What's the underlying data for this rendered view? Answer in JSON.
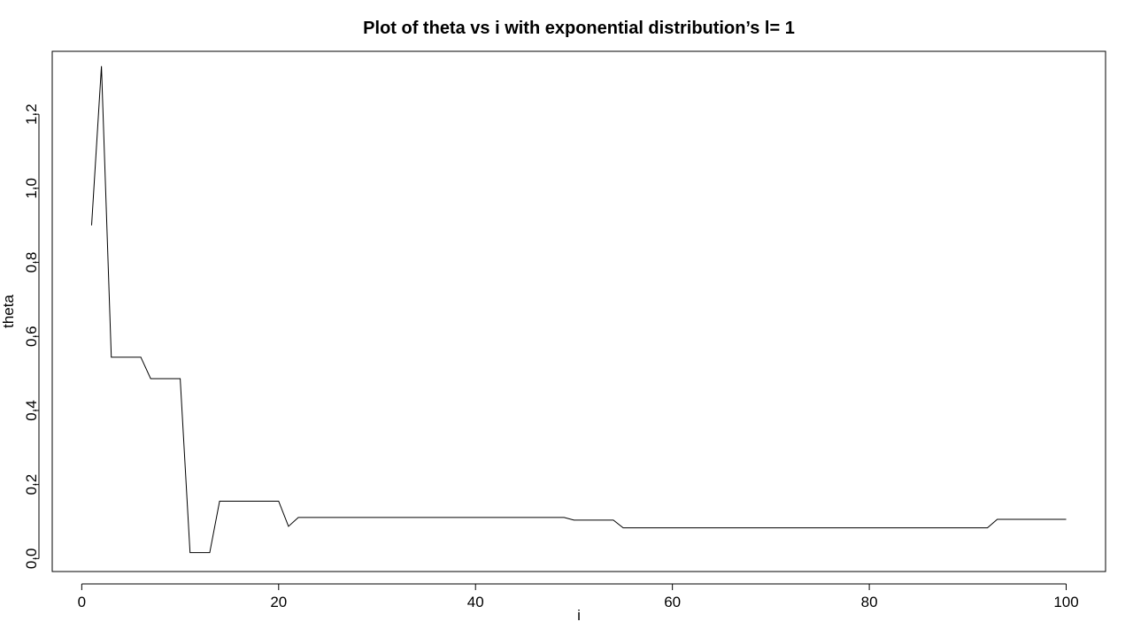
{
  "chart_data": {
    "type": "line",
    "title": "Plot of theta vs i with exponential distribution’s l= 1",
    "xlabel": "i",
    "ylabel": "theta",
    "xlim": [
      -3.0,
      104.0
    ],
    "ylim": [
      -0.035,
      1.37
    ],
    "xticks": [
      0,
      20,
      40,
      60,
      80,
      100
    ],
    "yticks": [
      0.0,
      0.2,
      0.4,
      0.6,
      0.8,
      1.0,
      1.2
    ],
    "xtick_labels": [
      "0",
      "20",
      "40",
      "60",
      "80",
      "100"
    ],
    "ytick_labels": [
      "0.0",
      "0.2",
      "0.4",
      "0.6",
      "0.8",
      "1.0",
      "1.2"
    ],
    "grid": false,
    "line_color": "#000000",
    "series": [
      {
        "x": [
          1,
          2,
          3,
          4,
          5,
          6,
          7,
          8,
          9,
          10,
          11,
          12,
          13,
          14,
          15,
          16,
          17,
          18,
          19,
          20,
          21,
          22,
          23,
          24,
          25,
          26,
          27,
          28,
          29,
          30,
          31,
          32,
          33,
          34,
          35,
          36,
          37,
          38,
          39,
          40,
          41,
          42,
          43,
          44,
          45,
          46,
          47,
          48,
          49,
          50,
          51,
          52,
          53,
          54,
          55,
          56,
          57,
          58,
          59,
          60,
          61,
          62,
          63,
          64,
          65,
          66,
          67,
          68,
          69,
          70,
          71,
          72,
          73,
          74,
          75,
          76,
          77,
          78,
          79,
          80,
          81,
          82,
          83,
          84,
          85,
          86,
          87,
          88,
          89,
          90,
          91,
          92,
          93,
          94,
          95,
          96,
          97,
          98,
          99,
          100
        ],
        "y": [
          0.9,
          1.33,
          0.544,
          0.544,
          0.544,
          0.544,
          0.486,
          0.486,
          0.486,
          0.486,
          0.016,
          0.016,
          0.016,
          0.155,
          0.155,
          0.155,
          0.155,
          0.155,
          0.155,
          0.155,
          0.087,
          0.111,
          0.111,
          0.111,
          0.111,
          0.111,
          0.111,
          0.111,
          0.111,
          0.111,
          0.111,
          0.111,
          0.111,
          0.111,
          0.111,
          0.111,
          0.111,
          0.111,
          0.111,
          0.111,
          0.111,
          0.111,
          0.111,
          0.111,
          0.111,
          0.111,
          0.111,
          0.111,
          0.111,
          0.104,
          0.104,
          0.104,
          0.104,
          0.104,
          0.083,
          0.083,
          0.083,
          0.083,
          0.083,
          0.083,
          0.083,
          0.083,
          0.083,
          0.083,
          0.083,
          0.083,
          0.083,
          0.083,
          0.083,
          0.083,
          0.083,
          0.083,
          0.083,
          0.083,
          0.083,
          0.083,
          0.083,
          0.083,
          0.083,
          0.083,
          0.083,
          0.083,
          0.083,
          0.083,
          0.083,
          0.083,
          0.083,
          0.083,
          0.083,
          0.083,
          0.083,
          0.083,
          0.106,
          0.106,
          0.106,
          0.106,
          0.106,
          0.106,
          0.106,
          0.106
        ]
      }
    ]
  }
}
